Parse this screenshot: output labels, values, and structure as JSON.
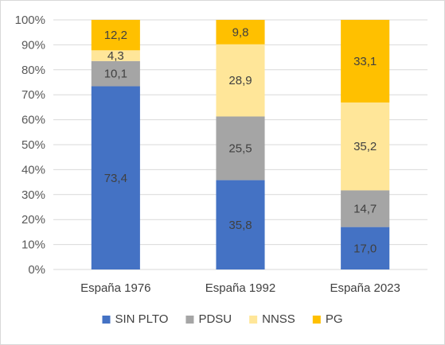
{
  "chart_data": {
    "type": "bar",
    "stacked": true,
    "categories": [
      "España 1976",
      "España 1992",
      "España 2023"
    ],
    "series": [
      {
        "name": "SIN PLTO",
        "values": [
          73.4,
          35.8,
          17.0
        ],
        "labels": [
          "73,4",
          "35,8",
          "17,0"
        ],
        "color": "#4472c4"
      },
      {
        "name": "PDSU",
        "values": [
          10.1,
          25.5,
          14.7
        ],
        "labels": [
          "10,1",
          "25,5",
          "14,7"
        ],
        "color": "#a5a5a5"
      },
      {
        "name": "NNSS",
        "values": [
          4.3,
          28.9,
          35.2
        ],
        "labels": [
          "4,3",
          "28,9",
          "35,2"
        ],
        "color": "#ffe699"
      },
      {
        "name": "PG",
        "values": [
          12.2,
          9.8,
          33.1
        ],
        "labels": [
          "12,2",
          "9,8",
          "33,1"
        ],
        "color": "#ffc000"
      }
    ],
    "yticks": [
      "0%",
      "10%",
      "20%",
      "30%",
      "40%",
      "50%",
      "60%",
      "70%",
      "80%",
      "90%",
      "100%"
    ],
    "ylim": [
      0,
      100
    ],
    "grid": true,
    "legend": "bottom",
    "gridColor": "#d9d9d9"
  }
}
